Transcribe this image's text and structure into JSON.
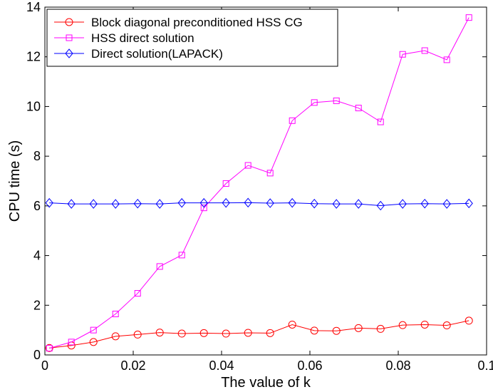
{
  "chart_data": {
    "type": "line",
    "xlabel": "The value of k",
    "ylabel": "CPU time (s)",
    "xlim": [
      0,
      0.1
    ],
    "ylim": [
      0,
      14
    ],
    "xticks": [
      0,
      0.02,
      0.04,
      0.06,
      0.08,
      0.1
    ],
    "xtick_labels": [
      "0",
      "0.02",
      "0.04",
      "0.06",
      "0.08",
      "0.1"
    ],
    "yticks": [
      0,
      2,
      4,
      6,
      8,
      10,
      12,
      14
    ],
    "ytick_labels": [
      "0",
      "2",
      "4",
      "6",
      "8",
      "10",
      "12",
      "14"
    ],
    "grid": false,
    "legend_position": "top-left",
    "x": [
      0.001,
      0.006,
      0.011,
      0.016,
      0.021,
      0.026,
      0.031,
      0.036,
      0.041,
      0.046,
      0.051,
      0.056,
      0.061,
      0.066,
      0.071,
      0.076,
      0.081,
      0.086,
      0.091,
      0.096
    ],
    "series": [
      {
        "name": "Block diagonal preconditioned HSS CG",
        "color": "#ff0000",
        "marker": "circle",
        "values": [
          0.28,
          0.38,
          0.52,
          0.75,
          0.82,
          0.9,
          0.86,
          0.88,
          0.86,
          0.89,
          0.88,
          1.22,
          0.98,
          0.97,
          1.08,
          1.05,
          1.2,
          1.22,
          1.19,
          1.38
        ]
      },
      {
        "name": "HSS direct solution",
        "color": "#ff00ff",
        "marker": "square",
        "values": [
          0.27,
          0.52,
          1.0,
          1.65,
          2.48,
          3.56,
          4.02,
          5.92,
          6.9,
          7.63,
          7.32,
          9.43,
          10.16,
          10.23,
          9.94,
          9.38,
          12.1,
          12.25,
          11.88,
          13.58
        ]
      },
      {
        "name": "Direct solution(LAPACK)",
        "color": "#0000ff",
        "marker": "diamond",
        "values": [
          6.12,
          6.08,
          6.08,
          6.08,
          6.09,
          6.08,
          6.12,
          6.12,
          6.12,
          6.13,
          6.11,
          6.12,
          6.09,
          6.08,
          6.08,
          6.01,
          6.08,
          6.09,
          6.08,
          6.1
        ]
      }
    ]
  }
}
